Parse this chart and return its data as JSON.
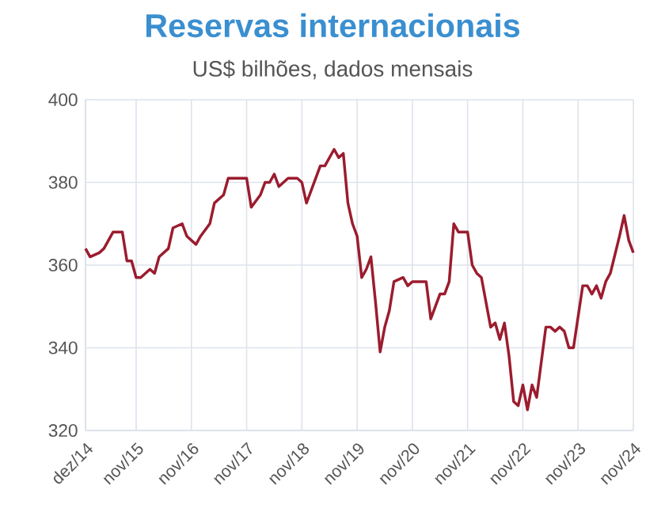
{
  "chart_data": {
    "type": "line",
    "title": "Reservas internacionais",
    "subtitle": "US$ bilhões, dados mensais",
    "x": [
      "2014-12",
      "2015-01",
      "2015-03",
      "2015-04",
      "2015-06",
      "2015-08",
      "2015-09",
      "2015-10",
      "2015-11",
      "2015-12",
      "2016-02",
      "2016-03",
      "2016-04",
      "2016-06",
      "2016-07",
      "2016-09",
      "2016-10",
      "2016-12",
      "2017-01",
      "2017-03",
      "2017-04",
      "2017-06",
      "2017-07",
      "2017-09",
      "2017-10",
      "2017-11",
      "2017-12",
      "2018-02",
      "2018-03",
      "2018-04",
      "2018-05",
      "2018-06",
      "2018-07",
      "2018-08",
      "2018-10",
      "2018-11",
      "2018-12",
      "2019-01",
      "2019-03",
      "2019-04",
      "2019-06",
      "2019-07",
      "2019-08",
      "2019-09",
      "2019-10",
      "2019-11",
      "2019-12",
      "2020-01",
      "2020-02",
      "2020-03",
      "2020-04",
      "2020-05",
      "2020-06",
      "2020-07",
      "2020-09",
      "2020-10",
      "2020-11",
      "2021-01",
      "2021-02",
      "2021-03",
      "2021-05",
      "2021-06",
      "2021-07",
      "2021-08",
      "2021-09",
      "2021-11",
      "2021-12",
      "2022-01",
      "2022-02",
      "2022-04",
      "2022-05",
      "2022-06",
      "2022-07",
      "2022-08",
      "2022-09",
      "2022-10",
      "2022-11",
      "2022-12",
      "2023-01",
      "2023-02",
      "2023-04",
      "2023-05",
      "2023-06",
      "2023-07",
      "2023-08",
      "2023-09",
      "2023-10",
      "2023-12",
      "2024-01",
      "2024-02",
      "2024-03",
      "2024-04",
      "2024-05",
      "2024-06",
      "2024-08",
      "2024-09",
      "2024-10",
      "2024-11"
    ],
    "series": [
      {
        "color": "#9b1c2e",
        "values": [
          364,
          362,
          363,
          364,
          368,
          368,
          361,
          361,
          357,
          357,
          359,
          358,
          362,
          364,
          369,
          370,
          367,
          365,
          367,
          370,
          375,
          377,
          381,
          381,
          381,
          381,
          374,
          377,
          380,
          380,
          382,
          379,
          380,
          381,
          381,
          380,
          375,
          378,
          384,
          384,
          388,
          386,
          387,
          375,
          370,
          367,
          357,
          359,
          362,
          351,
          339,
          345,
          349,
          356,
          357,
          355,
          356,
          356,
          356,
          347,
          353,
          353,
          356,
          370,
          368,
          368,
          360,
          358,
          357,
          345,
          346,
          342,
          346,
          338,
          327,
          326,
          331,
          325,
          331,
          328,
          345,
          345,
          344,
          345,
          344,
          340,
          340,
          355,
          355,
          353,
          355,
          352,
          356,
          358,
          367,
          372,
          366,
          363
        ]
      }
    ],
    "xlim": [
      "2014-12",
      "2024-11"
    ],
    "xticks": [
      {
        "value": "2014-12",
        "label": "dez/14"
      },
      {
        "value": "2015-11",
        "label": "nov/15"
      },
      {
        "value": "2016-11",
        "label": "nov/16"
      },
      {
        "value": "2017-11",
        "label": "nov/17"
      },
      {
        "value": "2018-11",
        "label": "nov/18"
      },
      {
        "value": "2019-11",
        "label": "nov/19"
      },
      {
        "value": "2020-11",
        "label": "nov/20"
      },
      {
        "value": "2021-11",
        "label": "nov/21"
      },
      {
        "value": "2022-11",
        "label": "nov/22"
      },
      {
        "value": "2023-11",
        "label": "nov/23"
      },
      {
        "value": "2024-11",
        "label": "nov/24"
      }
    ],
    "ylim": [
      320,
      400
    ],
    "yticks": [
      320,
      340,
      360,
      380,
      400
    ],
    "grid": true
  }
}
